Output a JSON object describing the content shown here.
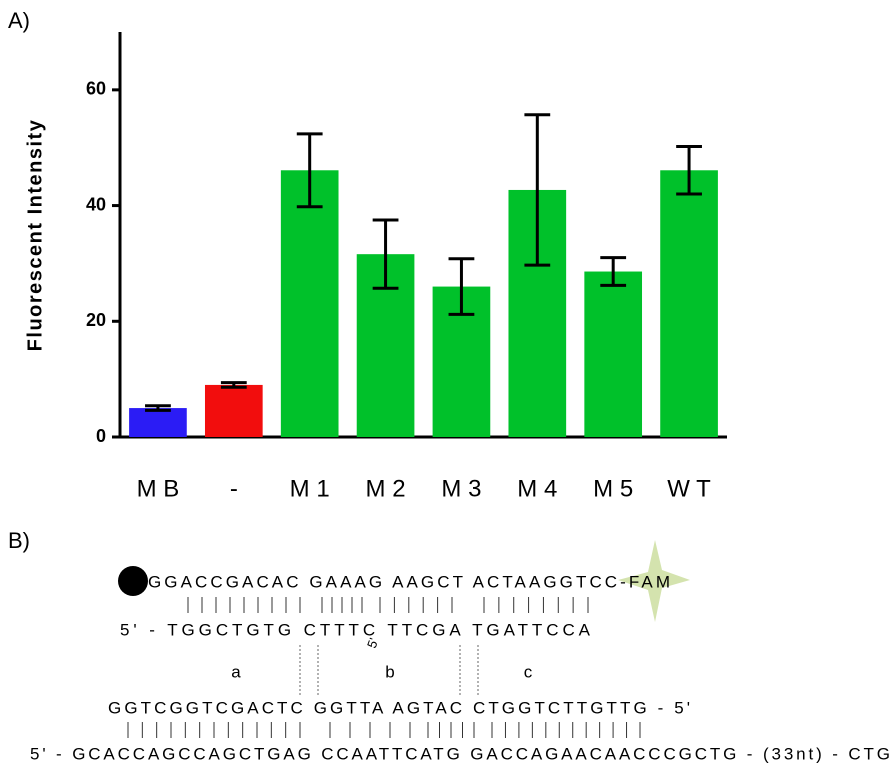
{
  "chart_data": {
    "type": "bar",
    "panel_label": "A)",
    "ylabel": "Fluorescent Intensity",
    "categories": [
      "M B",
      "-",
      "M 1",
      "M 2",
      "M 3",
      "M 4",
      "M 5",
      "W T"
    ],
    "values": [
      5,
      9,
      46.1,
      31.6,
      26,
      42.7,
      28.6,
      46.1
    ],
    "errors": [
      0.4,
      0.4,
      6.3,
      5.9,
      4.8,
      13,
      2.4,
      4.1
    ],
    "colors": [
      "#2b1cf5",
      "#f20d0d",
      "#00c12a",
      "#00c12a",
      "#00c12a",
      "#00c12a",
      "#00c12a",
      "#00c12a"
    ],
    "ylim": [
      0,
      70
    ],
    "yticks": [
      0,
      20,
      40,
      60
    ],
    "grid": false
  },
  "diagram": {
    "panel_label": "B)",
    "probe": "GGACCGACAC GAAAG AAGCT ACTAAGGTCC-FAM",
    "probe_complement": "5' - TGGCTGTG CTTTC TTCGA TGATTCCA",
    "loop_end": "5'",
    "regions": [
      "a",
      "b",
      "c"
    ],
    "primer": "GGTCGGTCGACTC GGTTA AGTAC CTGGTCTTGTTG - 5'",
    "target": "5' - GCACCAGCCAGCTGAG CCAATTCATG GACCAGAACAACCCGCTG - (33nt) - CTG"
  }
}
